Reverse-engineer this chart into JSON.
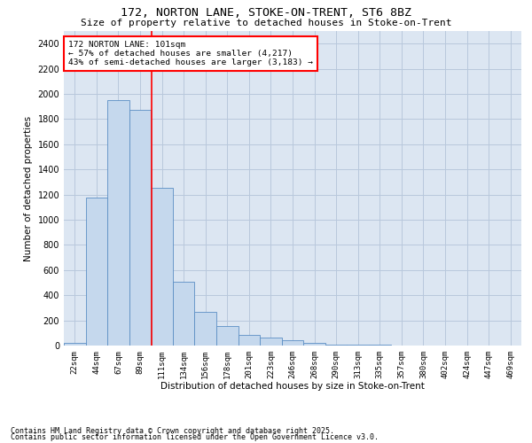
{
  "title1": "172, NORTON LANE, STOKE-ON-TRENT, ST6 8BZ",
  "title2": "Size of property relative to detached houses in Stoke-on-Trent",
  "xlabel": "Distribution of detached houses by size in Stoke-on-Trent",
  "ylabel": "Number of detached properties",
  "bin_labels": [
    "22sqm",
    "44sqm",
    "67sqm",
    "89sqm",
    "111sqm",
    "134sqm",
    "156sqm",
    "178sqm",
    "201sqm",
    "223sqm",
    "246sqm",
    "268sqm",
    "290sqm",
    "313sqm",
    "335sqm",
    "357sqm",
    "380sqm",
    "402sqm",
    "424sqm",
    "447sqm",
    "469sqm"
  ],
  "bar_heights": [
    20,
    1175,
    1950,
    1875,
    1250,
    510,
    265,
    155,
    88,
    65,
    42,
    18,
    10,
    8,
    5,
    3,
    2,
    2,
    1,
    1,
    1
  ],
  "bar_color": "#c5d8ed",
  "bar_edge_color": "#5b8ec4",
  "property_label": "172 NORTON LANE: 101sqm",
  "annotation_line1": "← 57% of detached houses are smaller (4,217)",
  "annotation_line2": "43% of semi-detached houses are larger (3,183) →",
  "ylim": [
    0,
    2500
  ],
  "yticks": [
    0,
    200,
    400,
    600,
    800,
    1000,
    1200,
    1400,
    1600,
    1800,
    2000,
    2200,
    2400
  ],
  "grid_color": "#b8c8dc",
  "background_color": "#dce6f2",
  "footnote1": "Contains HM Land Registry data © Crown copyright and database right 2025.",
  "footnote2": "Contains public sector information licensed under the Open Government Licence v3.0."
}
